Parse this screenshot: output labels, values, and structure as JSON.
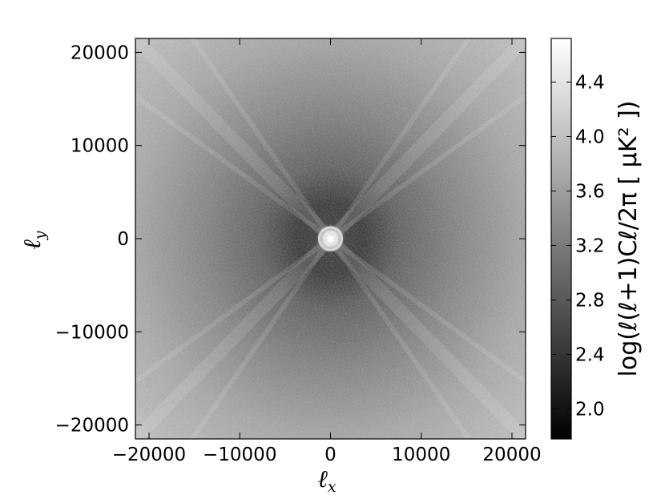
{
  "chart_data": {
    "type": "heatmap",
    "title": "",
    "xlabel": "ℓx",
    "ylabel": "ℓy",
    "xlim": [
      -21500,
      21500
    ],
    "ylim": [
      -21500,
      21500
    ],
    "x_ticks": [
      -20000,
      -10000,
      0,
      10000,
      20000
    ],
    "x_tick_labels": [
      "−20000",
      "−10000",
      "0",
      "10000",
      "20000"
    ],
    "y_ticks": [
      -20000,
      -10000,
      0,
      10000,
      20000
    ],
    "y_tick_labels": [
      "−20000",
      "−10000",
      "0",
      "10000",
      "20000"
    ],
    "colormap": "gray",
    "colorbar": {
      "label": "log(ℓ(ℓ+1)Cℓ/2π [ μK² ])",
      "range": [
        1.78,
        4.72
      ],
      "ticks": [
        2.0,
        2.4,
        2.8,
        3.2,
        3.6,
        4.0,
        4.4
      ],
      "tick_labels": [
        "2.0",
        "2.4",
        "2.8",
        "3.2",
        "3.6",
        "4.0",
        "4.4"
      ]
    },
    "features": {
      "center_value": 4.7,
      "dark_ring_value": 2.1,
      "outer_value": 3.9,
      "diagonal_stripes": true
    }
  }
}
